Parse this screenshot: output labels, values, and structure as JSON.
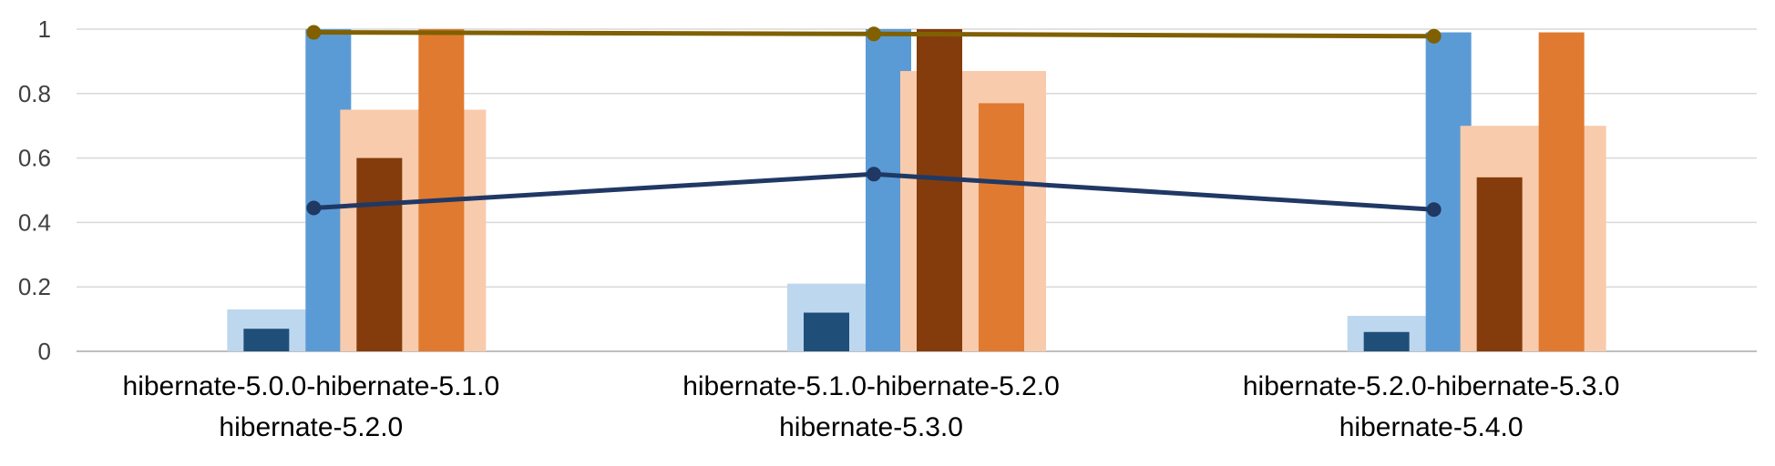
{
  "chart_data": {
    "type": "bar",
    "categories": [
      [
        "hibernate-5.0.0-hibernate-5.1.0",
        "hibernate-5.2.0"
      ],
      [
        "hibernate-5.1.0-hibernate-5.2.0",
        "hibernate-5.3.0"
      ],
      [
        "hibernate-5.2.0-hibernate-5.3.0",
        "hibernate-5.4.0"
      ]
    ],
    "ylim": [
      0,
      1
    ],
    "yticks": [
      0,
      0.2,
      0.4,
      0.6,
      0.8,
      1
    ],
    "ytick_labels": [
      "0",
      "0.2",
      "0.4",
      "0.6",
      "0.8",
      "1"
    ],
    "grid": true,
    "legend": "none",
    "bar_groups": [
      {
        "group": "blue",
        "background": {
          "color": "#BDD7EE",
          "values": [
            0.13,
            0.21,
            0.11
          ]
        },
        "bars": [
          {
            "color": "#1F4E79",
            "values": [
              0.07,
              0.12,
              0.06
            ]
          },
          {
            "color": "#5B9BD5",
            "values": [
              1.0,
              1.0,
              0.99
            ]
          }
        ]
      },
      {
        "group": "orange",
        "background": {
          "color": "#F8CBAD",
          "values": [
            0.75,
            0.87,
            0.7
          ]
        },
        "bars": [
          {
            "color": "#843C0C",
            "values": [
              0.6,
              1.0,
              0.54
            ]
          },
          {
            "color": "#E07A30",
            "values": [
              1.0,
              0.77,
              0.99
            ]
          }
        ]
      }
    ],
    "series": [
      {
        "type": "line",
        "color": "#806000",
        "values": [
          0.99,
          0.985,
          0.978
        ]
      },
      {
        "type": "line",
        "color": "#203864",
        "values": [
          0.445,
          0.55,
          0.44
        ]
      }
    ]
  }
}
